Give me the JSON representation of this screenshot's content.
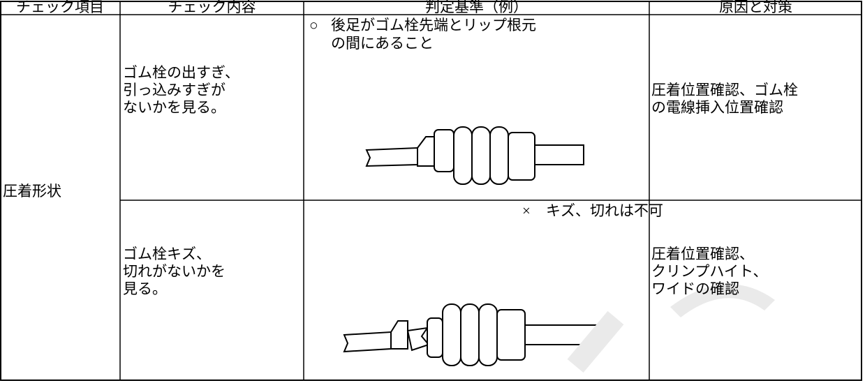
{
  "table": {
    "header": [
      "チェック項目",
      "チェック内容",
      "判定基準（例）",
      "原因と対策"
    ],
    "item": "圧着形状",
    "rows": [
      {
        "content": [
          "ゴム栓の出すぎ、",
          "引っ込みすぎが",
          "ないかを見る。"
        ],
        "criterion_mark": "○",
        "criterion": [
          "後足がゴム栓先端とリップ根元",
          "の間にあること"
        ],
        "measure": [
          "圧着位置確認、ゴム栓",
          "の電線挿入位置確認"
        ]
      },
      {
        "content": [
          "ゴム栓キズ、",
          "切れがないかを",
          "見る。"
        ],
        "criterion_mark": "×",
        "criterion": [
          "キズ、切れは不可"
        ],
        "measure": [
          "圧着位置確認、",
          "クリンプハイト、",
          "ワイドの確認"
        ]
      }
    ]
  }
}
